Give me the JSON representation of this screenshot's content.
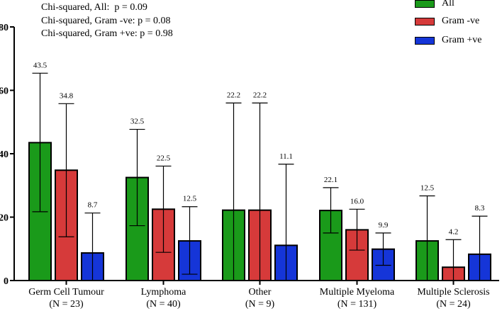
{
  "chart_data": {
    "type": "bar",
    "categories": [
      [
        "Germ Cell Tumour",
        "(N = 23)"
      ],
      [
        "Lymphoma",
        "(N = 40)"
      ],
      [
        "Other",
        "(N = 9)"
      ],
      [
        "Multiple Myeloma",
        "(N = 131)"
      ],
      [
        "Multiple Sclerosis",
        "(N = 24)"
      ]
    ],
    "series": [
      {
        "name": "All",
        "color": "#1a9a1a",
        "values": [
          43.5,
          32.5,
          22.2,
          22.1,
          12.5
        ],
        "labels": [
          "43.5",
          "32.5",
          "22.2",
          "22.1",
          "12.5"
        ],
        "err_low": [
          21.7,
          17.3,
          0,
          15.0,
          0
        ],
        "err_high": [
          65.4,
          47.7,
          56.0,
          29.3,
          26.7
        ]
      },
      {
        "name": "Gram -ve",
        "color": "#d63a3a",
        "values": [
          34.8,
          22.5,
          22.2,
          16.0,
          4.2
        ],
        "labels": [
          "34.8",
          "22.5",
          "22.2",
          "16.0",
          "4.2"
        ],
        "err_low": [
          13.8,
          8.9,
          0,
          9.6,
          0
        ],
        "err_high": [
          55.8,
          36.1,
          56.0,
          22.5,
          12.9
        ]
      },
      {
        "name": "Gram +ve",
        "color": "#1535d8",
        "values": [
          8.7,
          12.5,
          11.1,
          9.9,
          8.3
        ],
        "labels": [
          "8.7",
          "12.5",
          "11.1",
          "9.9",
          "8.3"
        ],
        "err_low": [
          0,
          2.0,
          0,
          4.8,
          0
        ],
        "err_high": [
          21.3,
          23.3,
          36.7,
          15.0,
          20.3
        ]
      }
    ],
    "yticks": [
      0,
      20,
      40,
      60,
      80
    ],
    "ylim": [
      0,
      80
    ],
    "title": "",
    "xlabel": "",
    "ylabel": "",
    "legend_position": "top-right",
    "annotations": [
      "Chi-squared, All:  p = 0.09",
      "Chi-squared, Gram -ve: p = 0.08",
      "Chi-squared, Gram +ve: p = 0.98"
    ]
  }
}
